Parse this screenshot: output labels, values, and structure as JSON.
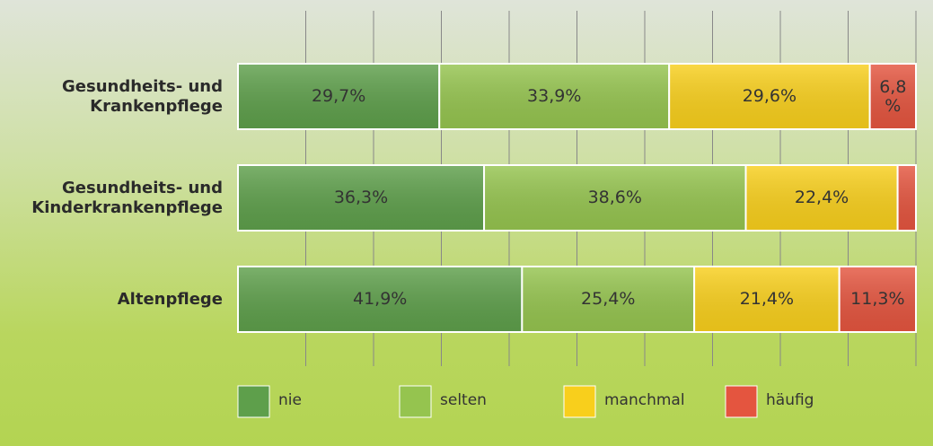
{
  "chart_data": {
    "type": "stacked_barh",
    "categories": [
      "Gesundheits- und\nKrankenpflege",
      "Gesundheits- und\nKinderkrankenpflege",
      "Altenpflege"
    ],
    "series": [
      {
        "name": "nie",
        "color": "#5e9f4b",
        "values": [
          29.7,
          36.3,
          41.9
        ],
        "value_labels": [
          "29,7%",
          "36,3%",
          "41,9%"
        ]
      },
      {
        "name": "selten",
        "color": "#95c44f",
        "values": [
          33.9,
          38.6,
          25.4
        ],
        "value_labels": [
          "33,9%",
          "38,6%",
          "25,4%"
        ]
      },
      {
        "name": "manchmal",
        "color": "#f8cf1c",
        "values": [
          29.6,
          22.4,
          21.4
        ],
        "value_labels": [
          "29,6%",
          "22,4%",
          "21,4%"
        ]
      },
      {
        "name": "häufig",
        "color": "#e4553f",
        "values": [
          6.8,
          2.7,
          11.3
        ],
        "value_labels": [
          "6,8 %",
          null,
          "11,3%"
        ]
      }
    ],
    "xlim": [
      0,
      100
    ],
    "xticks": [
      0,
      10,
      20,
      30,
      40,
      50,
      60,
      70,
      80,
      90,
      100
    ],
    "grid": true,
    "legend": "bottom"
  }
}
